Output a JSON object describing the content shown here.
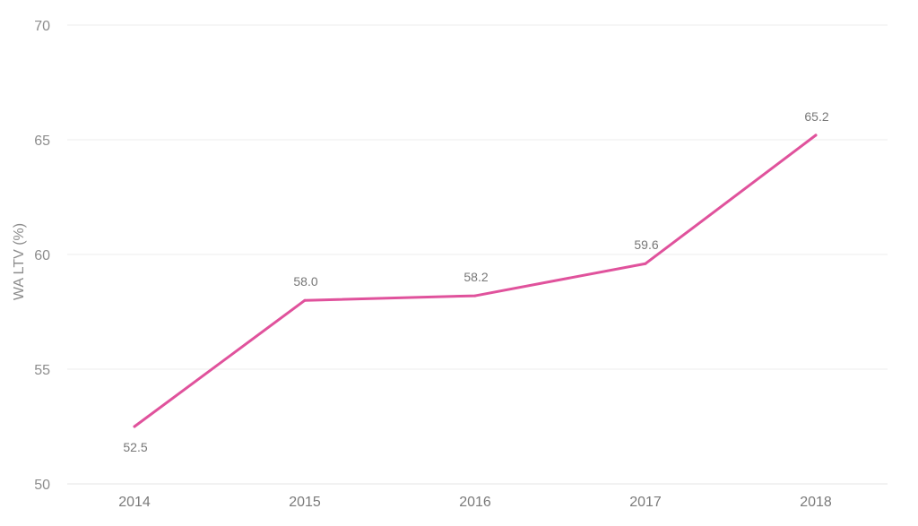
{
  "chart_data": {
    "type": "line",
    "title": "",
    "xlabel": "",
    "ylabel": "WA LTV (%)",
    "categories": [
      "2014",
      "2015",
      "2016",
      "2017",
      "2018"
    ],
    "series": [
      {
        "values": [
          52.5,
          58.0,
          58.2,
          59.6,
          65.2
        ],
        "value_labels": [
          "52.5",
          "58.0",
          "58.2",
          "59.6",
          "65.2"
        ],
        "color": "#e0529c"
      }
    ],
    "ylim": [
      50,
      70
    ],
    "yticks": [
      50,
      55,
      60,
      65,
      70
    ],
    "ytick_labels": [
      "50",
      "55",
      "60",
      "65",
      "70"
    ],
    "grid": true,
    "legend": "none"
  }
}
